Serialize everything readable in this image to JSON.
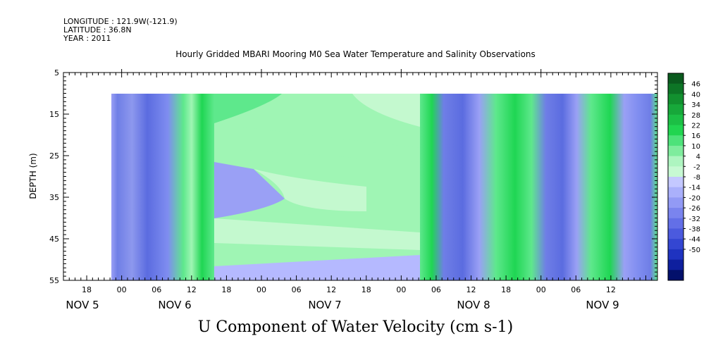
{
  "header": {
    "longitude": "LONGITUDE : 121.9W(-121.9)",
    "latitude": "LATITUDE : 36.8N",
    "year": "YEAR : 2011"
  },
  "chart_data": {
    "type": "heatmap",
    "title": "Hourly Gridded MBARI Mooring M0 Sea Water Temperature and Salinity Observations",
    "bottom_title": "U Component of Water Velocity (cm s-1)",
    "ylabel": "DEPTH (m)",
    "y_ticks": [
      "5",
      "15",
      "25",
      "35",
      "45",
      "55"
    ],
    "ylim": [
      5,
      55
    ],
    "y_inverted": true,
    "x_hour_ticks": [
      "18",
      "00",
      "06",
      "12",
      "18",
      "00",
      "06",
      "12",
      "18",
      "00",
      "06",
      "12",
      "18",
      "00",
      "06",
      "12"
    ],
    "x_day_labels": [
      "NOV 5",
      "NOV 6",
      "NOV 7",
      "NOV 8",
      "NOV 9"
    ],
    "colorbar_labels": [
      "46",
      "40",
      "34",
      "28",
      "22",
      "16",
      "10",
      "4",
      "-2",
      "-8",
      "-14",
      "-20",
      "-26",
      "-32",
      "-38",
      "-44",
      "-50"
    ],
    "data_extent": {
      "x_start_hour": "NOV 6 01",
      "x_end_hour": "NOV 9 ~18",
      "depth_top": 10,
      "depth_bottom": 55
    },
    "colors": {
      "positive_strong": "#1fd653",
      "positive": "#5ee88c",
      "positive_light": "#9ff5b4",
      "positive_pale": "#c4f9cf",
      "negative_pale": "#b5b9ff",
      "negative": "#9aa0f5",
      "negative_strong": "#6f7ee6",
      "negative_deep": "#5b6ce0"
    }
  }
}
